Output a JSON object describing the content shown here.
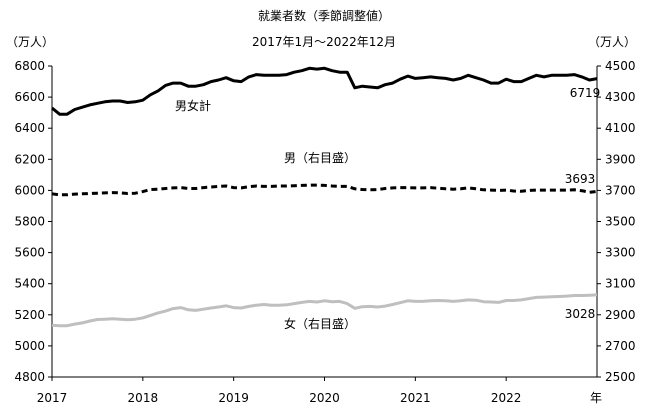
{
  "chart_data": {
    "type": "line",
    "title": "就業者数（季節調整値）",
    "subtitle": "2017年1月～2022年12月",
    "left_unit": "（万人）",
    "right_unit": "（万人）",
    "x_unit": "年",
    "x_ticks": [
      "2017",
      "2018",
      "2019",
      "2020",
      "2021",
      "2022"
    ],
    "y_left": {
      "min": 4800,
      "max": 6800,
      "ticks": [
        "4800",
        "5000",
        "5200",
        "5400",
        "5600",
        "5800",
        "6000",
        "6200",
        "6400",
        "6600",
        "6800"
      ]
    },
    "y_right": {
      "min": 2500,
      "max": 4500,
      "ticks": [
        "2500",
        "2700",
        "2900",
        "3100",
        "3300",
        "3500",
        "3700",
        "3900",
        "4100",
        "4300",
        "4500"
      ]
    },
    "grid": false,
    "legend": "inline labels",
    "series": [
      {
        "name": "男女計",
        "axis": "left",
        "color": "#000000",
        "style": "solid",
        "end_label": "6719",
        "values": [
          6530,
          6490,
          6490,
          6520,
          6535,
          6550,
          6560,
          6570,
          6575,
          6575,
          6565,
          6570,
          6580,
          6615,
          6640,
          6675,
          6690,
          6690,
          6670,
          6670,
          6680,
          6700,
          6710,
          6725,
          6705,
          6700,
          6730,
          6745,
          6740,
          6740,
          6740,
          6745,
          6760,
          6770,
          6785,
          6780,
          6785,
          6770,
          6760,
          6760,
          6660,
          6670,
          6665,
          6660,
          6680,
          6690,
          6715,
          6735,
          6720,
          6725,
          6730,
          6725,
          6720,
          6710,
          6720,
          6740,
          6725,
          6710,
          6690,
          6690,
          6715,
          6700,
          6700,
          6720,
          6740,
          6730,
          6740,
          6740,
          6740,
          6745,
          6730,
          6710,
          6719
        ]
      },
      {
        "name": "男（右目盛）",
        "axis": "right",
        "color": "#000000",
        "style": "dashed",
        "end_label": "3693",
        "values": [
          3678,
          3672,
          3672,
          3676,
          3678,
          3680,
          3682,
          3684,
          3686,
          3684,
          3680,
          3682,
          3692,
          3705,
          3708,
          3712,
          3716,
          3718,
          3712,
          3712,
          3718,
          3722,
          3726,
          3728,
          3718,
          3716,
          3724,
          3728,
          3726,
          3726,
          3728,
          3728,
          3730,
          3732,
          3734,
          3734,
          3732,
          3728,
          3726,
          3726,
          3710,
          3706,
          3704,
          3705,
          3712,
          3716,
          3718,
          3718,
          3716,
          3716,
          3718,
          3714,
          3710,
          3708,
          3710,
          3716,
          3710,
          3704,
          3702,
          3700,
          3702,
          3696,
          3694,
          3700,
          3702,
          3702,
          3702,
          3702,
          3702,
          3704,
          3698,
          3688,
          3693
        ]
      },
      {
        "name": "女（右目盛）",
        "axis": "right",
        "color": "#bfbfbf",
        "style": "solid",
        "end_label": "3028",
        "values": [
          2833,
          2830,
          2830,
          2840,
          2848,
          2860,
          2870,
          2872,
          2874,
          2872,
          2868,
          2872,
          2880,
          2896,
          2912,
          2924,
          2940,
          2946,
          2932,
          2928,
          2936,
          2944,
          2950,
          2958,
          2946,
          2944,
          2954,
          2962,
          2966,
          2962,
          2962,
          2964,
          2972,
          2980,
          2986,
          2982,
          2990,
          2984,
          2986,
          2972,
          2942,
          2952,
          2954,
          2950,
          2956,
          2966,
          2978,
          2990,
          2986,
          2986,
          2990,
          2992,
          2990,
          2986,
          2990,
          2996,
          2994,
          2984,
          2982,
          2980,
          2992,
          2992,
          2996,
          3004,
          3012,
          3014,
          3016,
          3018,
          3020,
          3024,
          3024,
          3026,
          3028
        ]
      }
    ]
  }
}
